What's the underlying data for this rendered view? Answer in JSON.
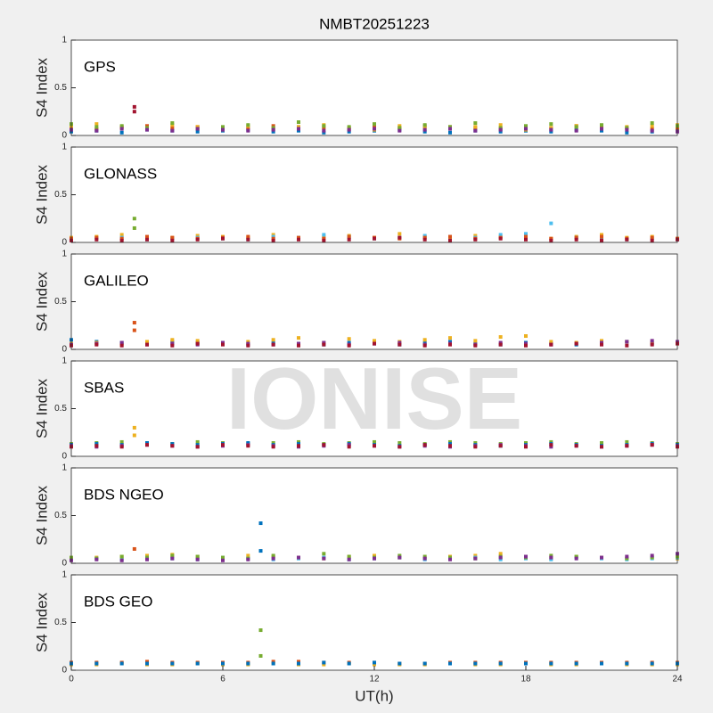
{
  "watermark": "IONISE",
  "chart_data": [
    {
      "type": "scatter",
      "title": "NMBT20251223",
      "label": "GPS",
      "ylabel": "S4 Index",
      "xlim": [
        0,
        24
      ],
      "ylim": [
        0,
        1
      ],
      "yticks": [
        0,
        0.5,
        1
      ],
      "x": [
        0,
        1,
        2,
        3,
        4,
        5,
        6,
        7,
        8,
        9,
        10,
        11,
        12,
        13,
        14,
        15,
        16,
        17,
        18,
        19,
        20,
        21,
        22,
        23,
        24
      ],
      "series": [
        {
          "color": "#0072bd",
          "values": [
            0.04,
            0.05,
            0.03,
            0.06,
            0.05,
            0.04,
            0.05,
            0.06,
            0.04,
            0.05,
            0.03,
            0.04,
            0.05,
            0.06,
            0.04,
            0.03,
            0.05,
            0.04,
            0.05,
            0.04,
            0.06,
            0.05,
            0.03,
            0.04,
            0.05
          ]
        },
        {
          "color": "#d95319",
          "values": [
            0.08,
            0.07,
            0.09,
            0.1,
            0.08,
            0.09,
            0.07,
            0.08,
            0.1,
            0.09,
            0.08,
            0.07,
            0.09,
            0.08,
            0.1,
            0.09,
            0.08,
            0.07,
            0.09,
            0.08,
            0.1,
            0.09,
            0.08,
            0.07,
            0.08
          ]
        },
        {
          "color": "#edb120",
          "values": [
            0.1,
            0.12,
            0.08,
            0.07,
            0.11,
            0.09,
            0.06,
            0.1,
            0.07,
            0.09,
            0.11,
            0.08,
            0.06,
            0.1,
            0.08,
            0.07,
            0.09,
            0.11,
            0.06,
            0.08,
            0.1,
            0.07,
            0.09,
            0.1,
            0.11
          ]
        },
        {
          "color": "#77ac30",
          "values": [
            0.12,
            0.09,
            0.1,
            0.08,
            0.13,
            0.07,
            0.09,
            0.11,
            0.08,
            0.14,
            0.1,
            0.09,
            0.12,
            0.08,
            0.11,
            0.09,
            0.13,
            0.08,
            0.1,
            0.12,
            0.09,
            0.11,
            0.08,
            0.13,
            0.1
          ]
        },
        {
          "color": "#7e2f8e",
          "values": [
            0.06,
            0.05,
            0.07,
            0.06,
            0.05,
            0.07,
            0.06,
            0.05,
            0.06,
            0.07,
            0.05,
            0.06,
            0.07,
            0.05,
            0.06,
            0.07,
            0.05,
            0.06,
            0.07,
            0.06,
            0.05,
            0.07,
            0.06,
            0.05,
            0.04
          ]
        },
        {
          "color": "#a2142f",
          "x": [
            2.5,
            2.5
          ],
          "values": [
            0.3,
            0.25
          ]
        }
      ]
    },
    {
      "type": "scatter",
      "label": "GLONASS",
      "ylabel": "S4 Index",
      "xlim": [
        0,
        24
      ],
      "ylim": [
        0,
        1
      ],
      "yticks": [
        0,
        0.5,
        1
      ],
      "x": [
        0,
        1,
        2,
        3,
        4,
        5,
        6,
        7,
        8,
        9,
        10,
        11,
        12,
        13,
        14,
        15,
        16,
        17,
        18,
        19,
        20,
        21,
        22,
        23,
        24
      ],
      "series": [
        {
          "color": "#edb120",
          "values": [
            0.05,
            0.06,
            0.08,
            0.04,
            0.05,
            0.07,
            0.06,
            0.05,
            0.08,
            0.04,
            0.06,
            0.07,
            0.05,
            0.09,
            0.06,
            0.05,
            0.07,
            0.06,
            0.05,
            0.04,
            0.06,
            0.08,
            0.05,
            0.06,
            0.04
          ]
        },
        {
          "color": "#4dbeee",
          "values": [
            0.03,
            0.04,
            0.05,
            0.03,
            0.04,
            0.05,
            0.04,
            0.03,
            0.06,
            0.05,
            0.08,
            0.06,
            0.04,
            0.05,
            0.07,
            0.06,
            0.05,
            0.08,
            0.09,
            0.2,
            0.05,
            0.04,
            0.03,
            0.04,
            0.03
          ]
        },
        {
          "color": "#d95319",
          "values": [
            0.04,
            0.05,
            0.04,
            0.06,
            0.05,
            0.04,
            0.05,
            0.06,
            0.04,
            0.05,
            0.04,
            0.06,
            0.05,
            0.04,
            0.05,
            0.06,
            0.04,
            0.05,
            0.06,
            0.04,
            0.05,
            0.06,
            0.04,
            0.05,
            0.04
          ]
        },
        {
          "color": "#a2142f",
          "values": [
            0.02,
            0.03,
            0.02,
            0.03,
            0.02,
            0.03,
            0.04,
            0.03,
            0.02,
            0.03,
            0.02,
            0.03,
            0.04,
            0.05,
            0.03,
            0.02,
            0.03,
            0.04,
            0.03,
            0.02,
            0.03,
            0.02,
            0.03,
            0.02,
            0.03
          ]
        },
        {
          "color": "#77ac30",
          "x": [
            2.5,
            2.5
          ],
          "values": [
            0.25,
            0.15
          ]
        }
      ]
    },
    {
      "type": "scatter",
      "label": "GALILEO",
      "ylabel": "S4 Index",
      "xlim": [
        0,
        24
      ],
      "ylim": [
        0,
        1
      ],
      "yticks": [
        0,
        0.5,
        1
      ],
      "x": [
        0,
        1,
        2,
        3,
        4,
        5,
        6,
        7,
        8,
        9,
        10,
        11,
        12,
        13,
        14,
        15,
        16,
        17,
        18,
        19,
        20,
        21,
        22,
        23,
        24
      ],
      "series": [
        {
          "color": "#0072bd",
          "values": [
            0.1,
            0.08,
            0.07,
            0.06,
            0.08,
            0.07,
            0.06,
            0.05,
            0.07,
            0.06,
            0.05,
            0.07,
            0.06,
            0.05,
            0.07,
            0.08,
            0.06,
            0.05,
            0.07,
            0.06,
            0.05,
            0.07,
            0.08,
            0.06,
            0.07
          ]
        },
        {
          "color": "#edb120",
          "values": [
            0.06,
            0.07,
            0.05,
            0.08,
            0.1,
            0.09,
            0.07,
            0.08,
            0.1,
            0.12,
            0.07,
            0.11,
            0.09,
            0.08,
            0.1,
            0.12,
            0.09,
            0.13,
            0.14,
            0.08,
            0.07,
            0.09,
            0.08,
            0.07,
            0.06
          ]
        },
        {
          "color": "#7e2f8e",
          "values": [
            0.05,
            0.06,
            0.07,
            0.05,
            0.06,
            0.05,
            0.07,
            0.06,
            0.05,
            0.06,
            0.07,
            0.05,
            0.06,
            0.07,
            0.05,
            0.06,
            0.05,
            0.07,
            0.06,
            0.05,
            0.06,
            0.07,
            0.08,
            0.09,
            0.08
          ]
        },
        {
          "color": "#a2142f",
          "values": [
            0.04,
            0.05,
            0.04,
            0.05,
            0.04,
            0.06,
            0.05,
            0.04,
            0.05,
            0.04,
            0.05,
            0.04,
            0.06,
            0.05,
            0.04,
            0.05,
            0.04,
            0.05,
            0.04,
            0.05,
            0.06,
            0.05,
            0.04,
            0.05,
            0.06
          ]
        },
        {
          "color": "#d95319",
          "x": [
            2.5,
            2.5
          ],
          "values": [
            0.28,
            0.2
          ]
        }
      ]
    },
    {
      "type": "scatter",
      "label": "SBAS",
      "ylabel": "S4 Index",
      "xlim": [
        0,
        24
      ],
      "ylim": [
        0,
        1
      ],
      "yticks": [
        0,
        0.5,
        1
      ],
      "x": [
        0,
        1,
        2,
        3,
        4,
        5,
        6,
        7,
        8,
        9,
        10,
        11,
        12,
        13,
        14,
        15,
        16,
        17,
        18,
        19,
        20,
        21,
        22,
        23,
        24
      ],
      "series": [
        {
          "color": "#77ac30",
          "values": [
            0.13,
            0.14,
            0.15,
            0.14,
            0.13,
            0.15,
            0.14,
            0.13,
            0.14,
            0.15,
            0.13,
            0.14,
            0.15,
            0.14,
            0.13,
            0.15,
            0.14,
            0.13,
            0.14,
            0.15,
            0.13,
            0.14,
            0.15,
            0.14,
            0.13
          ]
        },
        {
          "color": "#0072bd",
          "values": [
            0.12,
            0.13,
            0.12,
            0.14,
            0.13,
            0.12,
            0.13,
            0.14,
            0.12,
            0.13,
            0.12,
            0.13,
            0.12,
            0.11,
            0.12,
            0.13,
            0.12,
            0.11,
            0.12,
            0.13,
            0.12,
            0.11,
            0.12,
            0.13,
            0.12
          ]
        },
        {
          "color": "#7e2f8e",
          "values": [
            0.11,
            0.1,
            0.11,
            0.12,
            0.11,
            0.1,
            0.11,
            0.12,
            0.11,
            0.1,
            0.11,
            0.12,
            0.11,
            0.1,
            0.11,
            0.1,
            0.11,
            0.12,
            0.11,
            0.1,
            0.11,
            0.1,
            0.11,
            0.12,
            0.11
          ]
        },
        {
          "color": "#a2142f",
          "values": [
            0.1,
            0.11,
            0.1,
            0.12,
            0.11,
            0.1,
            0.12,
            0.11,
            0.1,
            0.11,
            0.12,
            0.1,
            0.11,
            0.1,
            0.12,
            0.11,
            0.1,
            0.11,
            0.1,
            0.12,
            0.11,
            0.1,
            0.11,
            0.12,
            0.1
          ]
        },
        {
          "color": "#edb120",
          "x": [
            2.5,
            2.5
          ],
          "values": [
            0.3,
            0.22
          ]
        }
      ]
    },
    {
      "type": "scatter",
      "label": "BDS NGEO",
      "ylabel": "S4 Index",
      "xlim": [
        0,
        24
      ],
      "ylim": [
        0,
        1
      ],
      "yticks": [
        0,
        0.5,
        1
      ],
      "x": [
        0,
        1,
        2,
        3,
        4,
        5,
        6,
        7,
        8,
        9,
        10,
        11,
        12,
        13,
        14,
        15,
        16,
        17,
        18,
        19,
        20,
        21,
        22,
        23,
        24
      ],
      "series": [
        {
          "color": "#edb120",
          "values": [
            0.05,
            0.06,
            0.07,
            0.08,
            0.09,
            0.07,
            0.06,
            0.08,
            0.07,
            0.06,
            0.05,
            0.07,
            0.08,
            0.06,
            0.05,
            0.07,
            0.08,
            0.1,
            0.06,
            0.05,
            0.07,
            0.06,
            0.05,
            0.06,
            0.05
          ]
        },
        {
          "color": "#4dbeee",
          "values": [
            0.04,
            0.05,
            0.04,
            0.06,
            0.05,
            0.04,
            0.06,
            0.05,
            0.04,
            0.05,
            0.06,
            0.04,
            0.05,
            0.06,
            0.04,
            0.05,
            0.06,
            0.04,
            0.05,
            0.04,
            0.06,
            0.05,
            0.04,
            0.05,
            0.06
          ]
        },
        {
          "color": "#77ac30",
          "values": [
            0.06,
            0.05,
            0.07,
            0.06,
            0.08,
            0.07,
            0.06,
            0.05,
            0.08,
            0.06,
            0.1,
            0.07,
            0.06,
            0.08,
            0.07,
            0.06,
            0.05,
            0.07,
            0.06,
            0.08,
            0.07,
            0.06,
            0.05,
            0.06,
            0.07
          ]
        },
        {
          "color": "#7e2f8e",
          "values": [
            0.03,
            0.04,
            0.03,
            0.04,
            0.05,
            0.04,
            0.03,
            0.04,
            0.05,
            0.06,
            0.05,
            0.04,
            0.05,
            0.06,
            0.05,
            0.04,
            0.05,
            0.06,
            0.07,
            0.06,
            0.05,
            0.06,
            0.07,
            0.08,
            0.1
          ]
        },
        {
          "color": "#0072bd",
          "x": [
            7.5,
            7.5
          ],
          "values": [
            0.42,
            0.13
          ]
        },
        {
          "color": "#d95319",
          "x": [
            2.5
          ],
          "values": [
            0.15
          ]
        }
      ]
    },
    {
      "type": "scatter",
      "label": "BDS GEO",
      "ylabel": "S4 Index",
      "xlabel": "UT(h)",
      "xlim": [
        0,
        24
      ],
      "ylim": [
        0,
        1
      ],
      "xticks": [
        0,
        6,
        12,
        18,
        24
      ],
      "yticks": [
        0,
        0.5,
        1
      ],
      "x": [
        0,
        1,
        2,
        3,
        4,
        5,
        6,
        7,
        8,
        9,
        10,
        11,
        12,
        13,
        14,
        15,
        16,
        17,
        18,
        19,
        20,
        21,
        22,
        23,
        24
      ],
      "series": [
        {
          "color": "#d95319",
          "values": [
            0.08,
            0.08,
            0.08,
            0.09,
            0.08,
            0.08,
            0.08,
            0.08,
            0.09,
            0.09,
            0.08,
            0.08,
            0.08,
            0.07,
            0.07,
            0.08,
            0.08,
            0.08,
            0.08,
            0.08,
            0.08,
            0.08,
            0.08,
            0.08,
            0.08
          ]
        },
        {
          "color": "#edb120",
          "values": [
            0.06,
            0.06,
            0.07,
            0.06,
            0.06,
            0.07,
            0.06,
            0.06,
            0.07,
            0.06,
            0.06,
            0.07,
            0.06,
            0.06,
            0.06,
            0.07,
            0.06,
            0.06,
            0.07,
            0.06,
            0.06,
            0.07,
            0.06,
            0.06,
            0.06
          ]
        },
        {
          "color": "#0072bd",
          "values": [
            0.07,
            0.07,
            0.07,
            0.07,
            0.07,
            0.07,
            0.07,
            0.07,
            0.07,
            0.07,
            0.08,
            0.07,
            0.08,
            0.07,
            0.07,
            0.07,
            0.07,
            0.07,
            0.07,
            0.07,
            0.07,
            0.07,
            0.07,
            0.07,
            0.07
          ]
        },
        {
          "color": "#77ac30",
          "x": [
            7.5,
            7.5
          ],
          "values": [
            0.42,
            0.15
          ]
        }
      ]
    }
  ]
}
